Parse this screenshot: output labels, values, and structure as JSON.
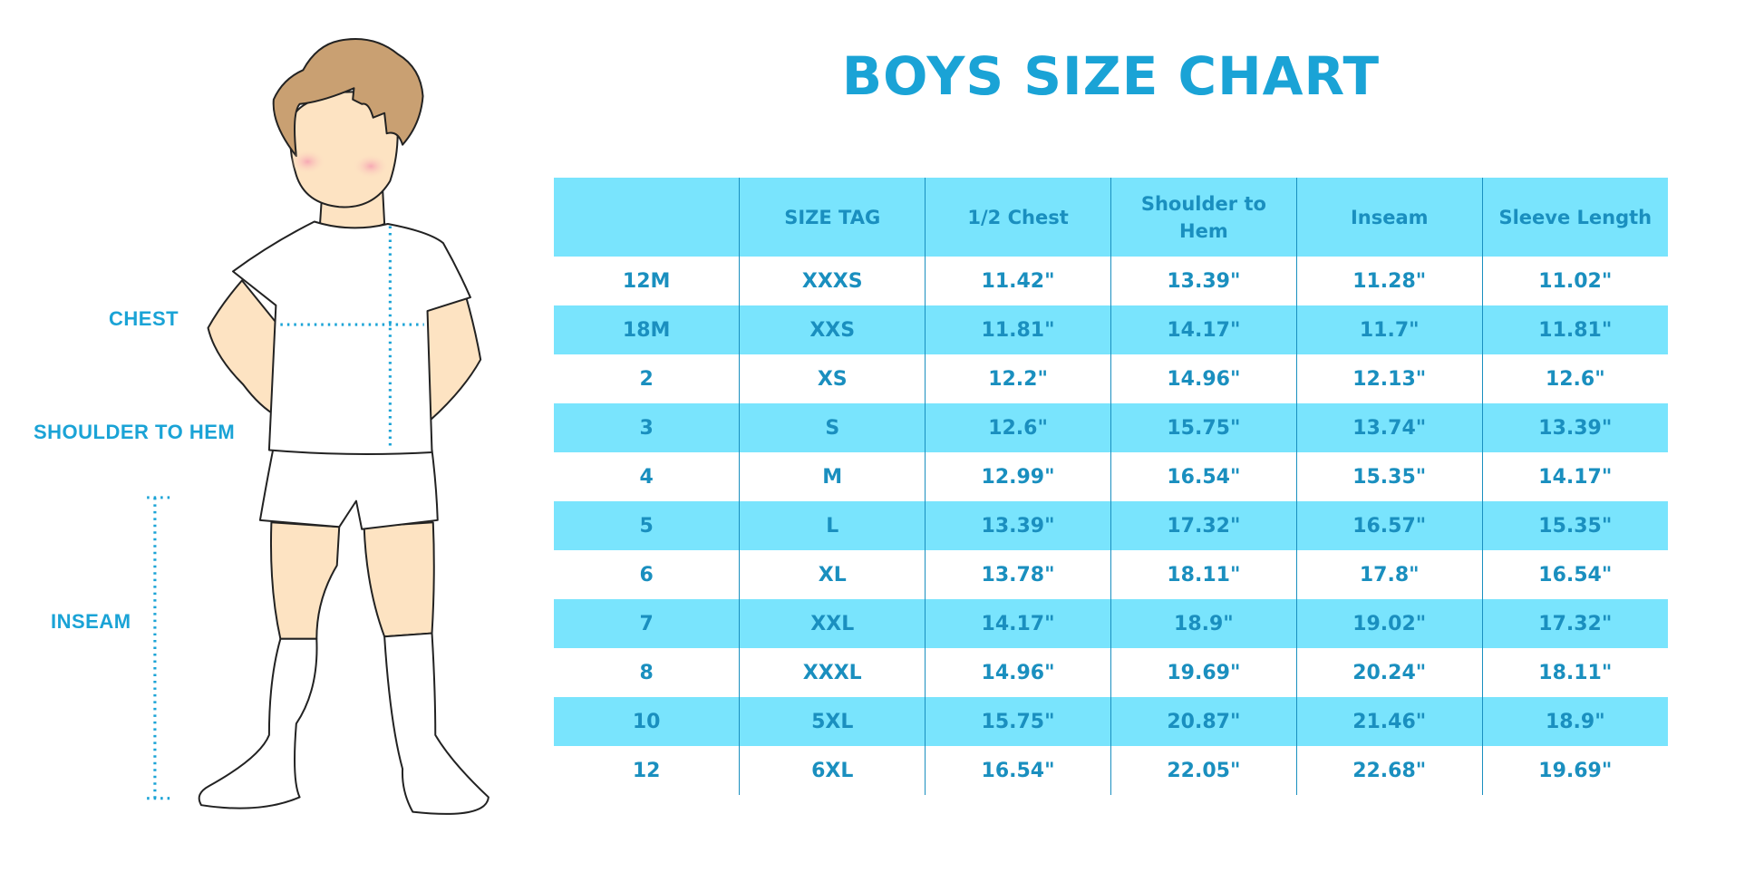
{
  "title": "BOYS SIZE CHART",
  "figure_labels": {
    "chest": "CHEST",
    "shoulder_to_hem": "SHOULDER TO HEM",
    "inseam": "INSEAM"
  },
  "colors": {
    "accent": "#1aa3d6",
    "header_bg": "#79e4fd",
    "text": "#1a8fbf"
  },
  "table": {
    "headers": [
      "",
      "SIZE TAG",
      "1/2 Chest",
      "Shoulder to Hem",
      "Inseam",
      "Sleeve Length"
    ],
    "rows": [
      [
        "12M",
        "XXXS",
        "11.42\"",
        "13.39\"",
        "11.28\"",
        "11.02\""
      ],
      [
        "18M",
        "XXS",
        "11.81\"",
        "14.17\"",
        "11.7\"",
        "11.81\""
      ],
      [
        "2",
        "XS",
        "12.2\"",
        "14.96\"",
        "12.13\"",
        "12.6\""
      ],
      [
        "3",
        "S",
        "12.6\"",
        "15.75\"",
        "13.74\"",
        "13.39\""
      ],
      [
        "4",
        "M",
        "12.99\"",
        "16.54\"",
        "15.35\"",
        "14.17\""
      ],
      [
        "5",
        "L",
        "13.39\"",
        "17.32\"",
        "16.57\"",
        "15.35\""
      ],
      [
        "6",
        "XL",
        "13.78\"",
        "18.11\"",
        "17.8\"",
        "16.54\""
      ],
      [
        "7",
        "XXL",
        "14.17\"",
        "18.9\"",
        "19.02\"",
        "17.32\""
      ],
      [
        "8",
        "XXXL",
        "14.96\"",
        "19.69\"",
        "20.24\"",
        "18.11\""
      ],
      [
        "10",
        "5XL",
        "15.75\"",
        "20.87\"",
        "21.46\"",
        "18.9\""
      ],
      [
        "12",
        "6XL",
        "16.54\"",
        "22.05\"",
        "22.68\"",
        "19.69\""
      ]
    ]
  }
}
